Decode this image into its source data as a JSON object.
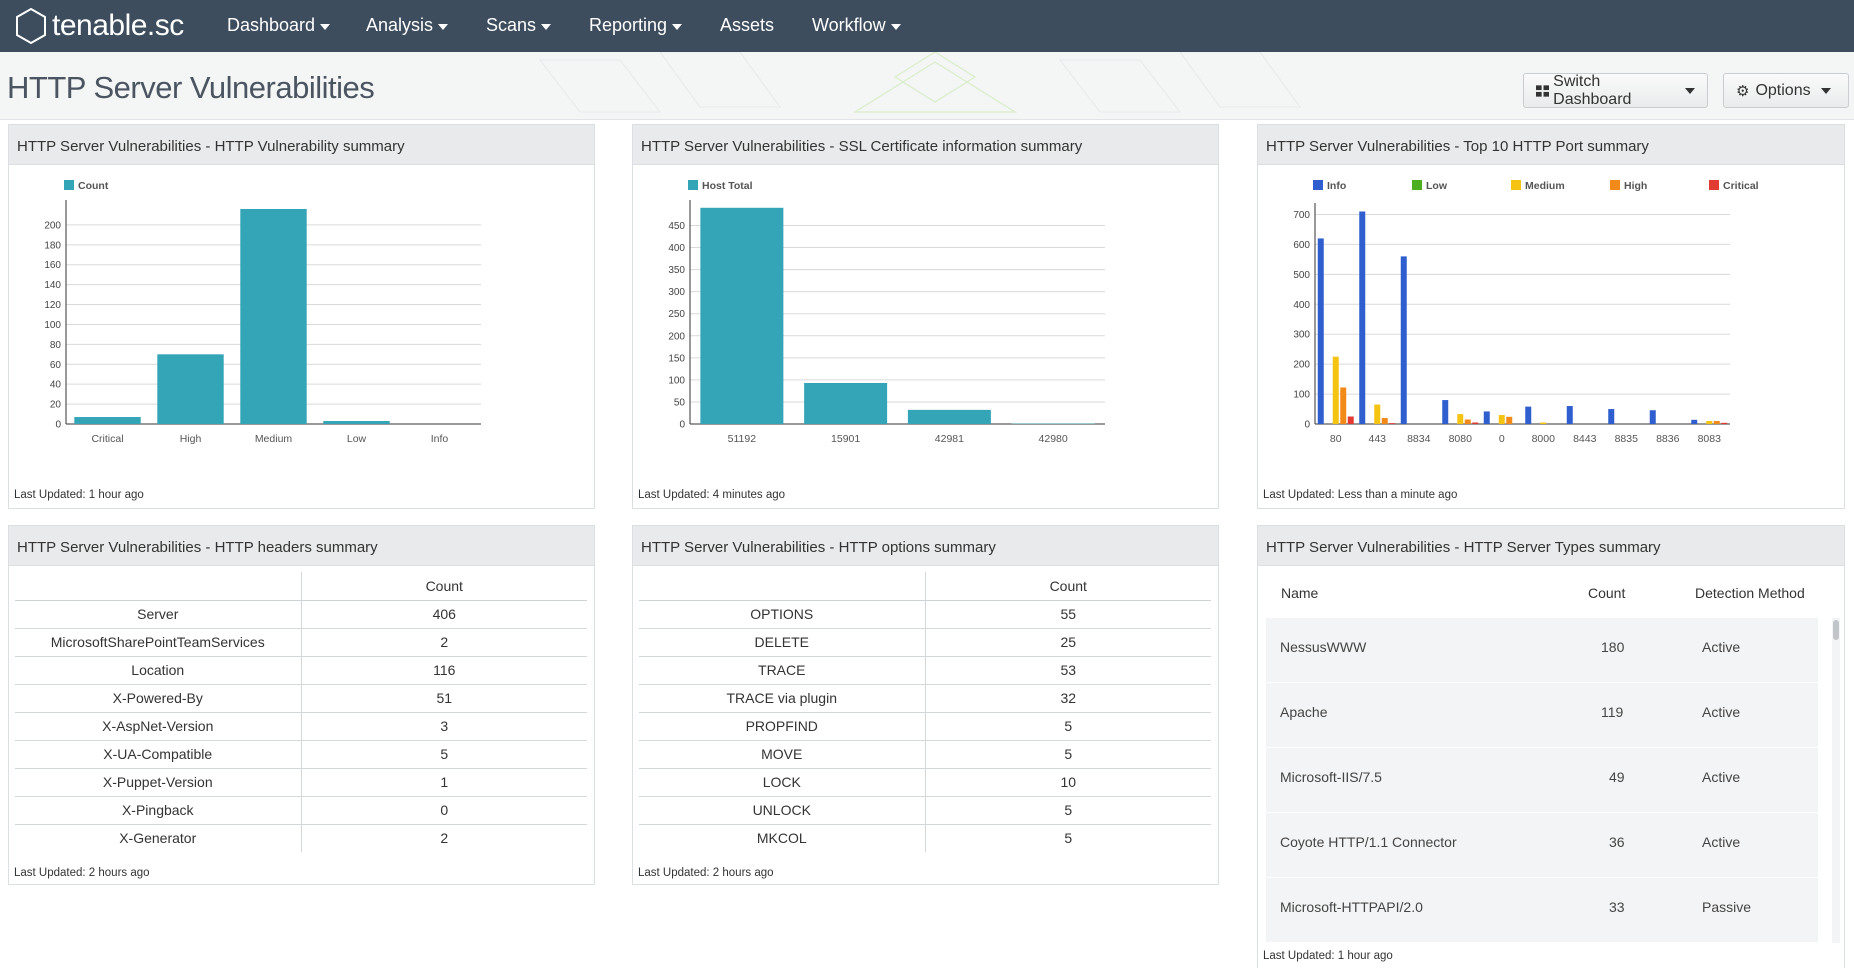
{
  "app": {
    "name": "tenable.sc"
  },
  "nav": {
    "items": [
      {
        "label": "Dashboard",
        "dropdown": true
      },
      {
        "label": "Analysis",
        "dropdown": true
      },
      {
        "label": "Scans",
        "dropdown": true
      },
      {
        "label": "Reporting",
        "dropdown": true
      },
      {
        "label": "Assets",
        "dropdown": false
      },
      {
        "label": "Workflow",
        "dropdown": true
      }
    ]
  },
  "page": {
    "title": "HTTP Server Vulnerabilities",
    "switch_label": "Switch Dashboard",
    "options_label": "Options"
  },
  "colors": {
    "teal": "#33a5b7",
    "info": "#2f5fce",
    "low": "#4caf1f",
    "medium": "#f5c311",
    "high": "#f28a1a",
    "critical": "#e23b32",
    "nav_bg": "#3d4d5e"
  },
  "panels": {
    "vuln_summary": {
      "title": "HTTP Server Vulnerabilities - HTTP Vulnerability summary",
      "updated": "Last Updated: 1 hour ago",
      "chart_data": {
        "type": "bar",
        "categories": [
          "Critical",
          "High",
          "Medium",
          "Low",
          "Info"
        ],
        "series": [
          {
            "name": "Count",
            "values": [
              7,
              70,
              216,
              3,
              0
            ]
          }
        ],
        "ylim": [
          0,
          215
        ],
        "yticks": [
          0,
          20,
          40,
          60,
          80,
          100,
          120,
          140,
          160,
          180,
          200
        ],
        "legend": "top-left"
      }
    },
    "ssl_summary": {
      "title": "HTTP Server Vulnerabilities - SSL Certificate information summary",
      "updated": "Last Updated: 4 minutes ago",
      "chart_data": {
        "type": "bar",
        "categories": [
          "51192",
          "15901",
          "42981",
          "42980"
        ],
        "series": [
          {
            "name": "Host Total",
            "values": [
              490,
              93,
              32,
              1
            ]
          }
        ],
        "ylim": [
          0,
          485
        ],
        "yticks": [
          0,
          50,
          100,
          150,
          200,
          250,
          300,
          350,
          400,
          450
        ],
        "legend": "top-left"
      }
    },
    "port_summary": {
      "title": "HTTP Server Vulnerabilities - Top 10 HTTP Port summary",
      "updated": "Last Updated: Less than a minute ago",
      "chart_data": {
        "type": "bar",
        "categories": [
          "80",
          "443",
          "8834",
          "8080",
          "0",
          "8000",
          "8443",
          "8835",
          "8836",
          "8083"
        ],
        "series": [
          {
            "name": "Info",
            "values": [
              620,
              710,
              560,
              80,
              42,
              58,
              60,
              50,
              46,
              14
            ]
          },
          {
            "name": "Low",
            "values": [
              0,
              0,
              0,
              0,
              0,
              0,
              0,
              0,
              0,
              0
            ]
          },
          {
            "name": "Medium",
            "values": [
              225,
              65,
              0,
              33,
              30,
              5,
              0,
              0,
              0,
              10
            ]
          },
          {
            "name": "High",
            "values": [
              122,
              20,
              0,
              15,
              24,
              0,
              0,
              0,
              0,
              10
            ]
          },
          {
            "name": "Critical",
            "values": [
              25,
              3,
              0,
              5,
              0,
              0,
              0,
              0,
              0,
              4
            ]
          }
        ],
        "ylim": [
          0,
          705
        ],
        "yticks": [
          0,
          100,
          200,
          300,
          400,
          500,
          600,
          700
        ],
        "legend": "top-left"
      }
    },
    "headers_summary": {
      "title": "HTTP Server Vulnerabilities - HTTP headers summary",
      "updated": "Last Updated: 2 hours ago",
      "column": "Count",
      "rows": [
        {
          "label": "Server",
          "count": "406"
        },
        {
          "label": "MicrosoftSharePointTeamServices",
          "count": "2"
        },
        {
          "label": "Location",
          "count": "116"
        },
        {
          "label": "X-Powered-By",
          "count": "51"
        },
        {
          "label": "X-AspNet-Version",
          "count": "3"
        },
        {
          "label": "X-UA-Compatible",
          "count": "5"
        },
        {
          "label": "X-Puppet-Version",
          "count": "1"
        },
        {
          "label": "X-Pingback",
          "count": "0"
        },
        {
          "label": "X-Generator",
          "count": "2"
        }
      ]
    },
    "options_summary": {
      "title": "HTTP Server Vulnerabilities - HTTP options summary",
      "updated": "Last Updated: 2 hours ago",
      "column": "Count",
      "rows": [
        {
          "label": "OPTIONS",
          "count": "55"
        },
        {
          "label": "DELETE",
          "count": "25"
        },
        {
          "label": "TRACE",
          "count": "53"
        },
        {
          "label": "TRACE via plugin",
          "count": "32"
        },
        {
          "label": "PROPFIND",
          "count": "5"
        },
        {
          "label": "MOVE",
          "count": "5"
        },
        {
          "label": "LOCK",
          "count": "10"
        },
        {
          "label": "UNLOCK",
          "count": "5"
        },
        {
          "label": "MKCOL",
          "count": "5"
        }
      ]
    },
    "server_types": {
      "title": "HTTP Server Vulnerabilities - HTTP Server Types summary",
      "updated": "Last Updated: 1 hour ago",
      "columns": {
        "name": "Name",
        "count": "Count",
        "method": "Detection Method"
      },
      "rows": [
        {
          "name": "NessusWWW",
          "count": "180",
          "method": "Active"
        },
        {
          "name": "Apache",
          "count": "119",
          "method": "Active"
        },
        {
          "name": "Microsoft-IIS/7.5",
          "count": "49",
          "method": "Active"
        },
        {
          "name": "Coyote HTTP/1.1 Connector",
          "count": "36",
          "method": "Active"
        },
        {
          "name": "Microsoft-HTTPAPI/2.0",
          "count": "33",
          "method": "Passive"
        }
      ]
    }
  }
}
